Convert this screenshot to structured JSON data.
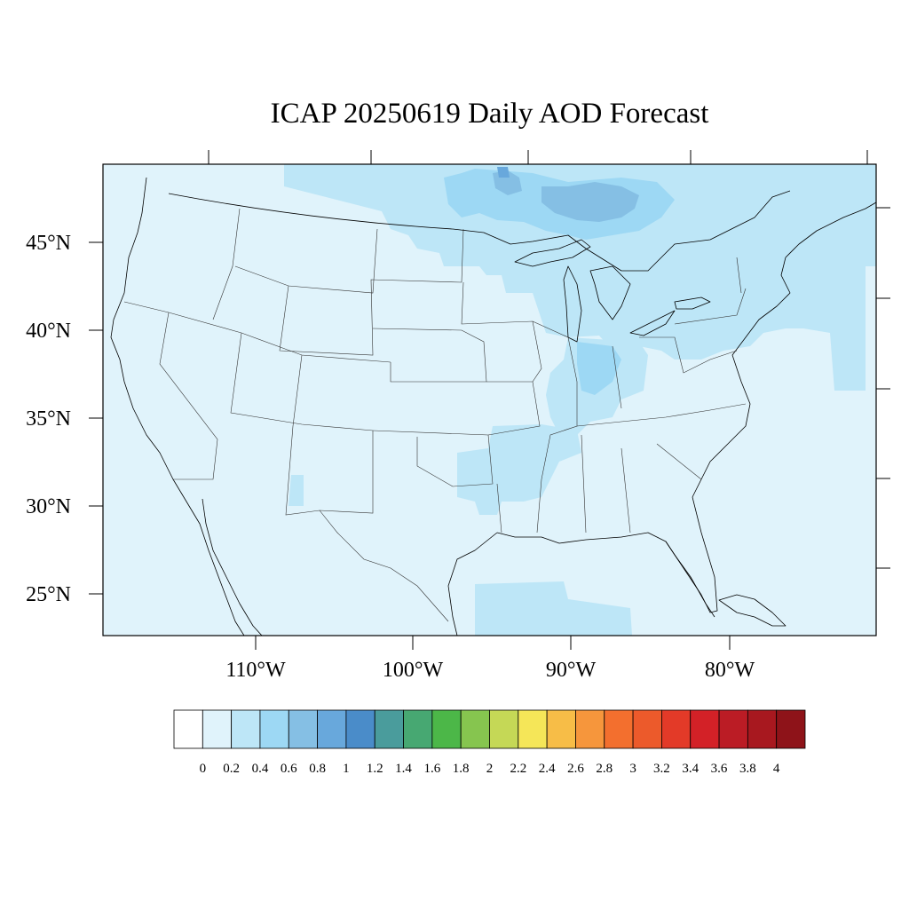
{
  "title": "ICAP 20250619 Daily AOD Forecast",
  "map": {
    "projection": "lambert-like",
    "lon_labels": [
      "110°W",
      "100°W",
      "90°W",
      "80°W"
    ],
    "lat_labels": [
      "45°N",
      "40°N",
      "35°N",
      "30°N",
      "25°N"
    ],
    "background_color": "#e0f3fb",
    "aod_regions": [
      {
        "name": "northern-plains-to-great-lakes",
        "aod_bin": "0.2-0.4"
      },
      {
        "name": "ontario-canada-plume",
        "aod_bin": "0.4-0.8"
      },
      {
        "name": "midwest-ohio-valley",
        "aod_bin": "0.2-0.4"
      },
      {
        "name": "southern-plains-arkansas",
        "aod_bin": "0.2-0.4"
      },
      {
        "name": "new-england-atlantic",
        "aod_bin": "0.2-0.4"
      },
      {
        "name": "gulf-of-mexico",
        "aod_bin": "0.2-0.4"
      },
      {
        "name": "new-mexico-patch",
        "aod_bin": "0.2-0.4"
      }
    ]
  },
  "colorbar": {
    "labels": [
      "0",
      "0.2",
      "0.4",
      "0.6",
      "0.8",
      "1",
      "1.2",
      "1.4",
      "1.6",
      "1.8",
      "2",
      "2.2",
      "2.4",
      "2.6",
      "2.8",
      "3",
      "3.2",
      "3.4",
      "3.6",
      "3.8",
      "4"
    ],
    "colors": [
      "#ffffff",
      "#e0f3fb",
      "#bde6f7",
      "#9dd8f4",
      "#85bfe4",
      "#68a8dc",
      "#4a8cc9",
      "#4a9c9c",
      "#47a872",
      "#4cb748",
      "#86c54f",
      "#c5d856",
      "#f5e658",
      "#f7bd47",
      "#f6963c",
      "#f36f2e",
      "#ec5a2b",
      "#e33a28",
      "#d32127",
      "#bb1c25",
      "#a8181f",
      "#8e1319"
    ]
  }
}
